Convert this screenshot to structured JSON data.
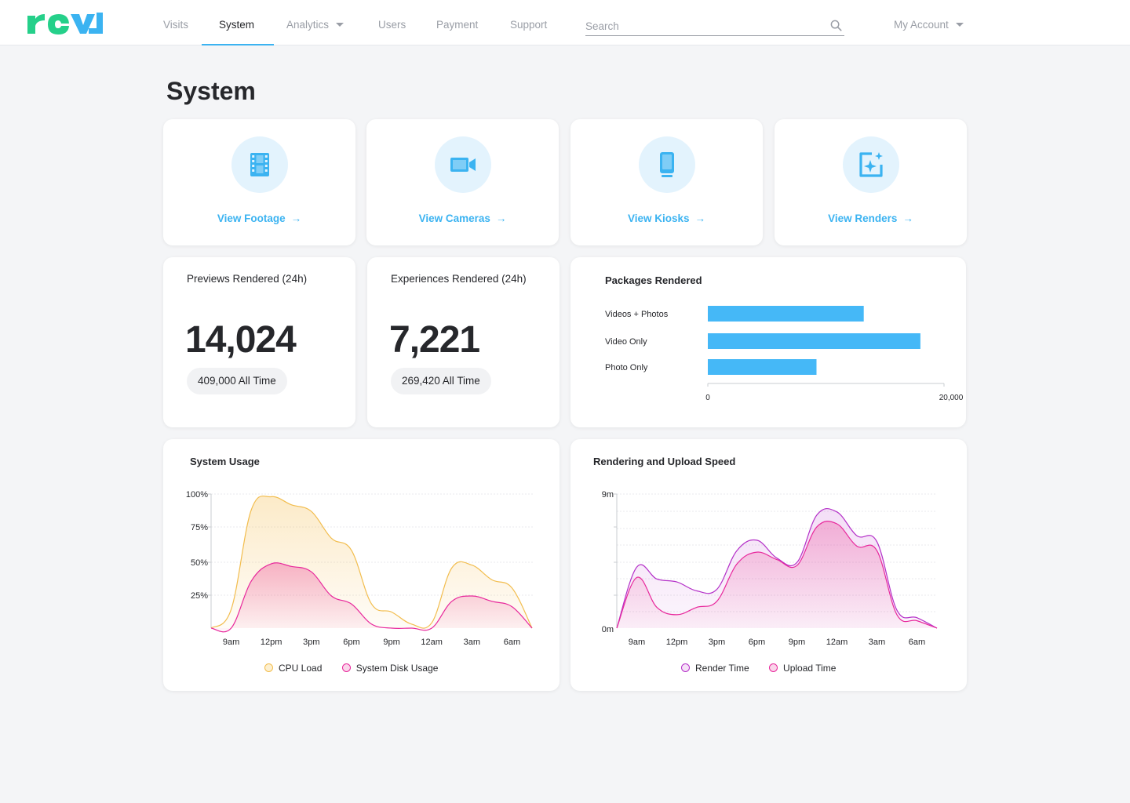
{
  "header": {
    "logo_text": "revl",
    "nav": [
      {
        "label": "Visits"
      },
      {
        "label": "System"
      },
      {
        "label": "Analytics"
      },
      {
        "label": "Users"
      },
      {
        "label": "Payment"
      },
      {
        "label": "Support"
      }
    ],
    "active_nav": "System",
    "search": {
      "placeholder": "Search",
      "value": ""
    },
    "account_label": "My Account",
    "colors": {
      "logo_green": "#25d08a",
      "logo_blue": "#3bb3f1",
      "accent": "#3bb3f1"
    }
  },
  "page_title": "System",
  "quick_links": [
    {
      "label": "View Footage",
      "icon": "film-icon"
    },
    {
      "label": "View Cameras",
      "icon": "video-camera-icon"
    },
    {
      "label": "View Kiosks",
      "icon": "kiosk-device-icon"
    },
    {
      "label": "View Renders",
      "icon": "render-sparkle-icon"
    }
  ],
  "stats": [
    {
      "title": "Previews Rendered (24h)",
      "value": "14,024",
      "all_time": "409,000 All Time"
    },
    {
      "title": "Experiences Rendered (24h)",
      "value": "7,221",
      "all_time": "269,420 All Time"
    }
  ],
  "chart_data": [
    {
      "id": "packages",
      "type": "bar",
      "orientation": "horizontal",
      "title": "Packages Rendered",
      "categories": [
        "Videos + Photos",
        "Video Only",
        "Photo Only"
      ],
      "values": [
        13200,
        18000,
        9200
      ],
      "xlim": [
        0,
        20000
      ],
      "xtick_labels": [
        "0",
        "20,000"
      ],
      "color": "#45b8f7"
    },
    {
      "id": "system_usage",
      "type": "area",
      "title": "System Usage",
      "x": [
        "8am",
        "9am",
        "10:30am",
        "12pm",
        "1:30pm",
        "3pm",
        "4:30pm",
        "6pm",
        "7:30pm",
        "9pm",
        "10:30pm",
        "12am",
        "1:30am",
        "3am",
        "4:30am",
        "6am",
        "7am"
      ],
      "xtick_labels": [
        "9am",
        "12pm",
        "3pm",
        "6pm",
        "9pm",
        "12am",
        "3am",
        "6am"
      ],
      "ytick_labels": [
        "100%",
        "75%",
        "50%",
        "25%"
      ],
      "ylim": [
        0,
        100
      ],
      "series": [
        {
          "name": "CPU Load",
          "color": "#f2bd4e",
          "values": [
            0,
            14,
            88,
            98,
            92,
            87,
            67,
            58,
            18,
            12,
            3,
            4,
            45,
            47,
            36,
            30,
            0
          ]
        },
        {
          "name": "System Disk Usage",
          "color": "#e8289c",
          "values": [
            0,
            0,
            35,
            48,
            46,
            42,
            24,
            18,
            3,
            0,
            0,
            0,
            20,
            24,
            20,
            16,
            0
          ]
        }
      ],
      "legend_position": "bottom"
    },
    {
      "id": "render_upload",
      "type": "area",
      "title": "Rendering and Upload Speed",
      "x": [
        "8am",
        "9am",
        "10:30am",
        "12pm",
        "1:30pm",
        "3pm",
        "4:30pm",
        "6pm",
        "7:30pm",
        "9pm",
        "10:30pm",
        "12am",
        "1:30am",
        "3am",
        "4:30am",
        "6am",
        "7am"
      ],
      "xtick_labels": [
        "9am",
        "12pm",
        "3pm",
        "6pm",
        "9pm",
        "12am",
        "3am",
        "6am"
      ],
      "ytick_labels": [
        "9m",
        "0m"
      ],
      "ylim": [
        0,
        9
      ],
      "series": [
        {
          "name": "Render Time",
          "color": "#b430c8",
          "values": [
            0,
            4.1,
            3.3,
            3.1,
            2.5,
            2.6,
            5.2,
            5.9,
            4.7,
            4.4,
            7.6,
            7.8,
            6.2,
            5.8,
            1.2,
            0.7,
            0
          ]
        },
        {
          "name": "Upload Time",
          "color": "#e8289c",
          "values": [
            0,
            3.4,
            1.4,
            0.9,
            1.4,
            1.8,
            4.3,
            5.1,
            4.6,
            4.2,
            6.8,
            7.0,
            5.5,
            5.2,
            0.9,
            0.5,
            0
          ]
        }
      ],
      "legend_position": "bottom"
    }
  ]
}
